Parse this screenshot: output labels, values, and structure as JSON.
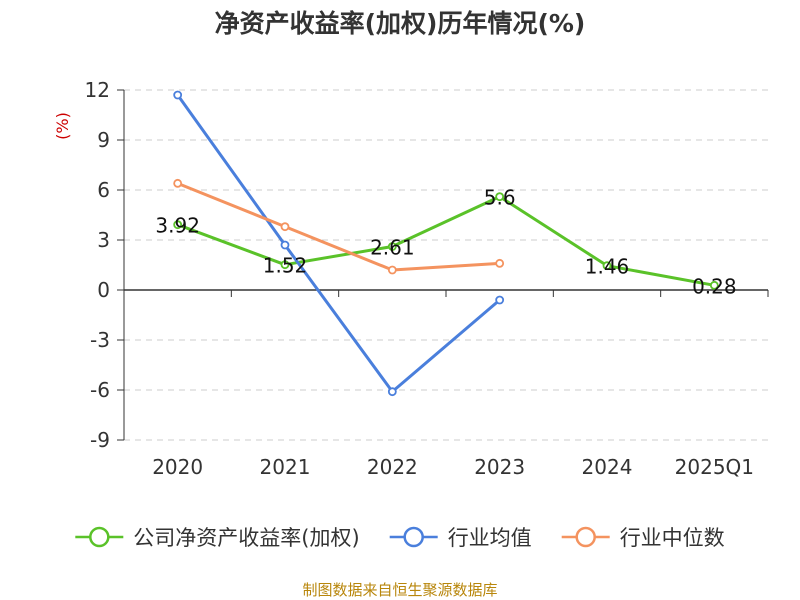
{
  "chart_data": {
    "type": "line",
    "title": "净资产收益率(加权)历年情况(%)",
    "ylabel": "(%)",
    "xlabel": "",
    "categories": [
      "2020",
      "2021",
      "2022",
      "2023",
      "2024",
      "2025Q1"
    ],
    "ylim": [
      -9,
      12
    ],
    "yticks": [
      12,
      9,
      6,
      3,
      0,
      -3,
      -6,
      -9
    ],
    "grid": true,
    "legend_position": "bottom",
    "series": [
      {
        "name": "公司净资产收益率(加权)",
        "color": "#5ac229",
        "values": [
          3.92,
          1.52,
          2.61,
          5.6,
          1.46,
          0.28
        ],
        "labels": [
          "3.92",
          "1.52",
          "2.61",
          "5.6",
          "1.46",
          "0.28"
        ]
      },
      {
        "name": "行业均值",
        "color": "#4a7fdc",
        "values": [
          11.7,
          2.7,
          -6.1,
          -0.6,
          null,
          null
        ]
      },
      {
        "name": "行业中位数",
        "color": "#f4935f",
        "values": [
          6.4,
          3.8,
          1.2,
          1.6,
          null,
          null
        ]
      }
    ],
    "source": "制图数据来自恒生聚源数据库"
  }
}
